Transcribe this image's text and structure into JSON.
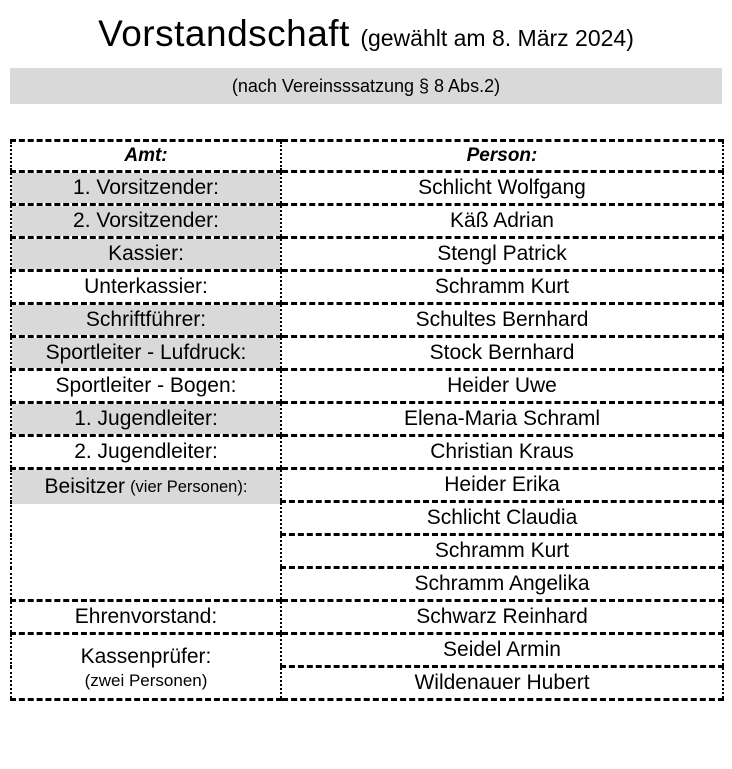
{
  "page": {
    "title": "Vorstandschaft",
    "title_suffix": "(gewählt am 8. März 2024)",
    "subtitle": "(nach Vereinsssatzung § 8 Abs.2)"
  },
  "table": {
    "header": {
      "amt": "Amt:",
      "person": "Person:"
    },
    "rows": [
      {
        "amt": "1. Vorsitzender:",
        "person": "Schlicht Wolfgang",
        "shaded": true
      },
      {
        "amt": "2. Vorsitzender:",
        "person": "Käß Adrian",
        "shaded": true
      },
      {
        "amt": "Kassier:",
        "person": "Stengl Patrick",
        "shaded": true
      },
      {
        "amt": "Unterkassier:",
        "person": "Schramm Kurt",
        "shaded": false
      },
      {
        "amt": "Schriftführer:",
        "person": "Schultes Bernhard",
        "shaded": true
      },
      {
        "amt": "Sportleiter - Lufdruck:",
        "person": "Stock Bernhard",
        "shaded": true
      },
      {
        "amt": "Sportleiter - Bogen:",
        "person": "Heider Uwe",
        "shaded": false
      },
      {
        "amt": "1. Jugendleiter:",
        "person": "Elena-Maria Schraml",
        "shaded": true
      },
      {
        "amt": "2. Jugendleiter:",
        "person": "Christian Kraus",
        "shaded": false
      }
    ],
    "beisitzer": {
      "label": "Beisitzer",
      "note": "(vier Personen):",
      "shaded": true,
      "persons": [
        "Heider Erika",
        "Schlicht Claudia",
        "Schramm Kurt",
        "Schramm Angelika"
      ]
    },
    "ehrenvorstand": {
      "amt": "Ehrenvorstand:",
      "person": "Schwarz Reinhard",
      "shaded": false
    },
    "kassenpruefer": {
      "label": "Kassenprüfer:",
      "note": "(zwei Personen)",
      "shaded": false,
      "persons": [
        "Seidel Armin",
        "Wildenauer Hubert"
      ]
    }
  },
  "colors": {
    "shaded_bg": "#d9d9d9",
    "subtitle_bar_bg": "#d9d9d9",
    "border": "#000000",
    "text": "#000000"
  }
}
